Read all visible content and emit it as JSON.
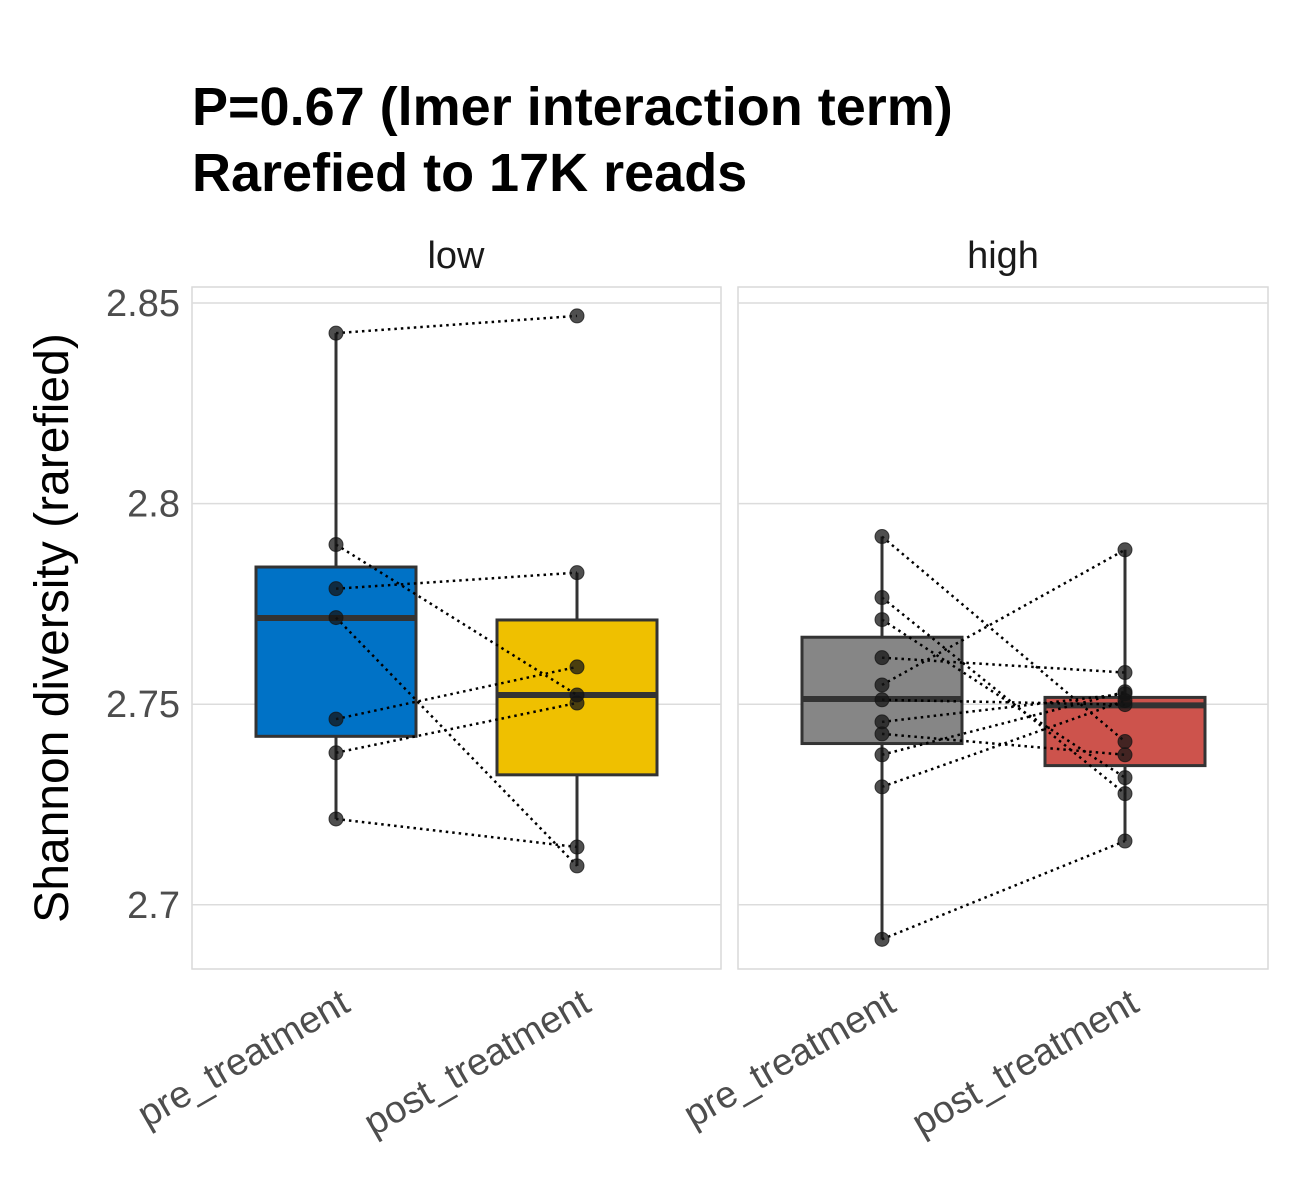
{
  "chart_data": {
    "type": "boxplot",
    "title_lines": [
      "P=0.67 (lmer interaction term)",
      "Rarefied to 17K reads"
    ],
    "ylabel": "Shannon diversity (rarefied)",
    "xlabel": "",
    "ylim": [
      2.684,
      2.854
    ],
    "yticks": [
      2.7,
      2.75,
      2.8,
      2.85
    ],
    "ytick_labels": [
      "2.7",
      "2.75",
      "2.8",
      "2.85"
    ],
    "grid": true,
    "categories": [
      "pre_treatment",
      "post_treatment"
    ],
    "facets": [
      {
        "label": "low",
        "boxes": [
          {
            "category": "pre_treatment",
            "color": "#0072C6",
            "whisker_low": 2.7214,
            "q1": 2.742,
            "median": 2.7715,
            "q3": 2.7842,
            "whisker_high": 2.8425
          },
          {
            "category": "post_treatment",
            "color": "#EFC000",
            "whisker_low": 2.7097,
            "q1": 2.7324,
            "median": 2.7523,
            "q3": 2.771,
            "whisker_high": 2.7828
          }
        ],
        "pairs": [
          [
            2.8425,
            2.8468
          ],
          [
            2.7898,
            2.7523
          ],
          [
            2.7788,
            2.7828
          ],
          [
            2.7716,
            2.7097
          ],
          [
            2.7463,
            2.7593
          ],
          [
            2.7379,
            2.7503
          ],
          [
            2.7214,
            2.7144
          ]
        ]
      },
      {
        "label": "high",
        "boxes": [
          {
            "category": "pre_treatment",
            "color": "#868686",
            "whisker_low": 2.6914,
            "q1": 2.7402,
            "median": 2.7513,
            "q3": 2.7667,
            "whisker_high": 2.7918
          },
          {
            "category": "post_treatment",
            "color": "#CD534C",
            "whisker_low": 2.7159,
            "q1": 2.7347,
            "median": 2.7497,
            "q3": 2.7517,
            "whisker_high": 2.7885
          }
        ],
        "pairs": [
          [
            2.7918,
            2.7407
          ],
          [
            2.7766,
            2.7277
          ],
          [
            2.7711,
            2.7317
          ],
          [
            2.7616,
            2.7579
          ],
          [
            2.7548,
            2.7885
          ],
          [
            2.7511,
            2.7499
          ],
          [
            2.7456,
            2.7526
          ],
          [
            2.7426,
            2.7374
          ],
          [
            2.7374,
            2.7531
          ],
          [
            2.7294,
            2.7509
          ],
          [
            2.6914,
            2.7159
          ]
        ]
      }
    ]
  }
}
